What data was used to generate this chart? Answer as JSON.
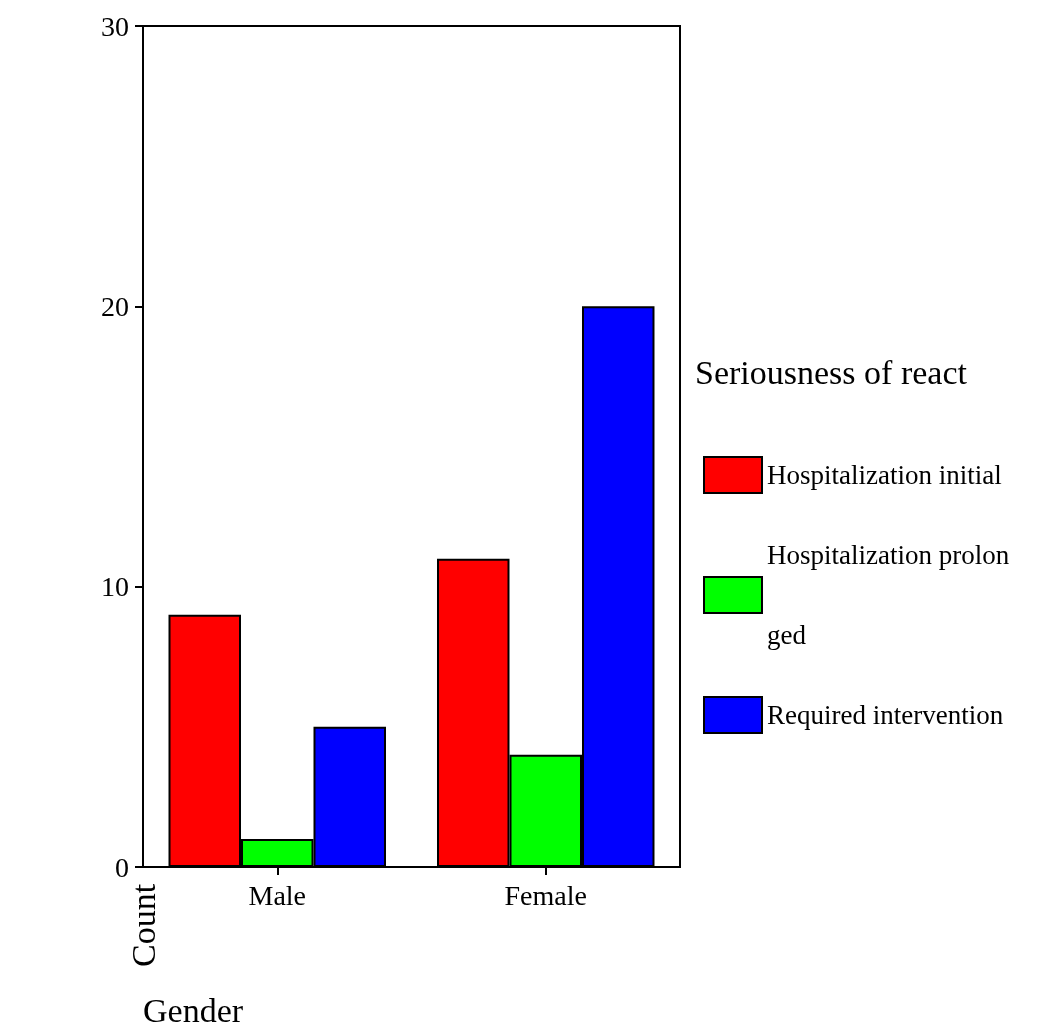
{
  "chart_data": {
    "type": "bar",
    "xlabel": "Gender",
    "ylabel": "Count",
    "legend_title": "Seriousness of react",
    "categories": [
      "Male",
      "Female"
    ],
    "series": [
      {
        "name": "Hospitalization initial",
        "color": "#ff0000",
        "values": [
          9,
          11
        ]
      },
      {
        "name": "Hospitalization prolonged",
        "color": "#00ff00",
        "values": [
          1,
          4
        ]
      },
      {
        "name": "Required intervention",
        "color": "#0000ff",
        "values": [
          5,
          20
        ]
      }
    ],
    "ylim": [
      0,
      30
    ],
    "yticks": [
      0,
      10,
      20,
      30
    ],
    "grid": false,
    "legend": "right"
  }
}
